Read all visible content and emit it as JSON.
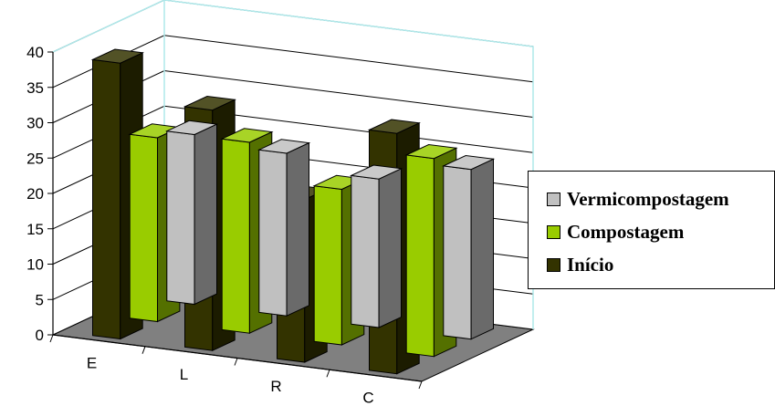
{
  "chart_data": {
    "type": "bar",
    "title": "",
    "xlabel": "",
    "ylabel": "",
    "categories": [
      "E",
      "L",
      "R",
      "C"
    ],
    "ylim": [
      0,
      40
    ],
    "yticks": [
      "0",
      "5",
      "10",
      "15",
      "20",
      "25",
      "30",
      "35",
      "40"
    ],
    "series": [
      {
        "name": "Vermicompostagem",
        "values": [
          24,
          23,
          21,
          24
        ],
        "color": "#c0c0c0"
      },
      {
        "name": "Compostagem",
        "values": [
          26,
          27,
          22,
          28
        ],
        "color": "#99cc00"
      },
      {
        "name": "Início",
        "values": [
          39,
          34,
          23,
          34
        ],
        "color": "#333300"
      }
    ],
    "grid": true,
    "legend_position": "right",
    "wall_color": "#ffffff",
    "floor_color": "#808080"
  }
}
